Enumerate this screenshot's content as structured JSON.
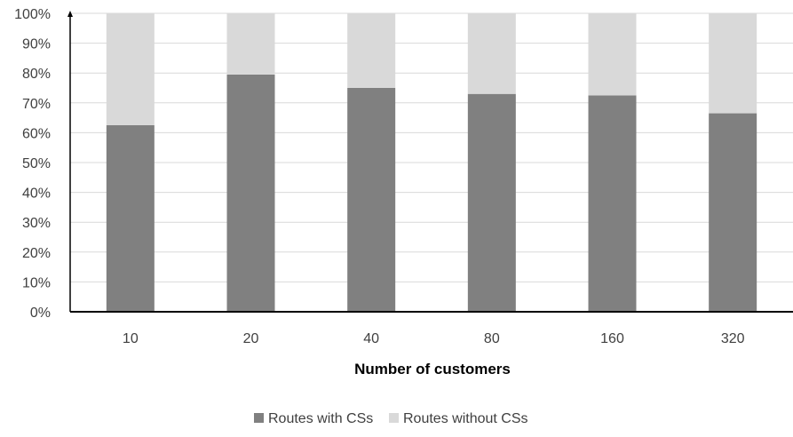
{
  "chart_data": {
    "type": "bar",
    "stacked": true,
    "categories": [
      "10",
      "20",
      "40",
      "80",
      "160",
      "320"
    ],
    "series": [
      {
        "name": "Routes with CSs",
        "values": [
          62.5,
          79.5,
          75,
          73,
          72.5,
          66.5
        ],
        "color": "#808080"
      },
      {
        "name": "Routes without CSs",
        "values": [
          37.5,
          20.5,
          25,
          27,
          27.5,
          33.5
        ],
        "color": "#d9d9d9"
      }
    ],
    "xlabel": "Number of customers",
    "ylabel": "",
    "ylim": [
      0,
      100
    ],
    "y_ticks": [
      0,
      10,
      20,
      30,
      40,
      50,
      60,
      70,
      80,
      90,
      100
    ],
    "y_tick_format": "percent",
    "gridlines": true,
    "gridline_color": "#d9d9d9",
    "legend_position": "bottom"
  }
}
